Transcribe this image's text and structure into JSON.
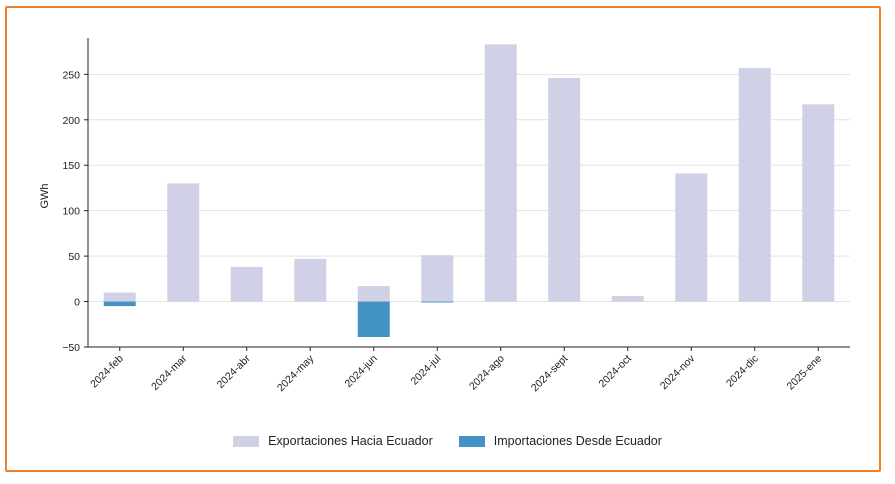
{
  "colors": {
    "frame": "#f07f2a",
    "exports": "#d0d1e6",
    "imports": "#4292c6"
  },
  "chart_data": {
    "type": "bar",
    "ylabel": "GWh",
    "ylim": [
      -50,
      290
    ],
    "yticks": [
      -50,
      0,
      50,
      100,
      150,
      200,
      250
    ],
    "grid": true,
    "legend_position": "bottom",
    "categories": [
      "2024-feb",
      "2024-mar",
      "2024-abr",
      "2024-may",
      "2024-jun",
      "2024-jul",
      "2024-ago",
      "2024-sept",
      "2024-oct",
      "2024-nov",
      "2024-dic",
      "2025-ene"
    ],
    "series": [
      {
        "name": "Exportaciones Hacia Ecuador",
        "color": "#d0d1e6",
        "values": [
          10,
          130,
          38,
          47,
          17,
          51,
          283,
          246,
          6,
          141,
          257,
          217
        ]
      },
      {
        "name": "Importaciones Desde Ecuador",
        "color": "#4292c6",
        "values": [
          -5,
          0,
          0,
          0,
          -39,
          -1,
          0,
          0,
          0,
          0,
          0,
          0
        ]
      }
    ]
  }
}
